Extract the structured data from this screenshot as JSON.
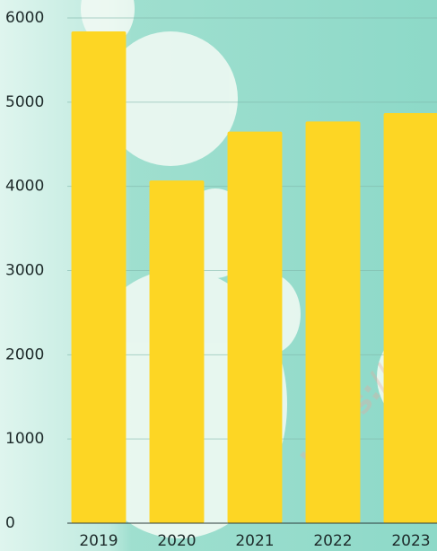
{
  "chart_data": {
    "type": "bar",
    "categories": [
      "2019",
      "2020",
      "2021",
      "2022",
      "2023"
    ],
    "values": [
      5840,
      4070,
      4650,
      4770,
      4870
    ],
    "color": "#fdd624",
    "ylim": [
      0,
      6000
    ],
    "yticks": [
      0,
      1000,
      2000,
      3000,
      4000,
      5000,
      6000
    ],
    "grid": true,
    "watermark": "https://se"
  }
}
